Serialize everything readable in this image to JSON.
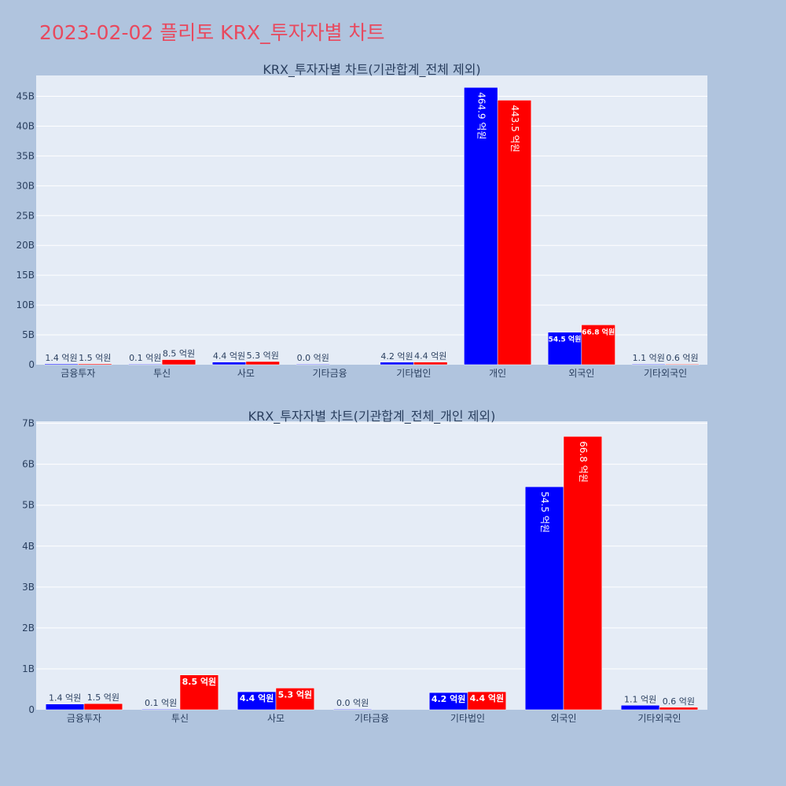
{
  "page_title": "2023-02-02 플리토 KRX_투자자별 차트",
  "colors": {
    "buy": "#0000ff",
    "sell": "#ff0000",
    "background": "#b0c4de",
    "plot_bg": "#e5ecf6",
    "title": "#e8495e"
  },
  "chart_data": [
    {
      "type": "bar",
      "title": "KRX_투자자별 차트(기관합계_전체 제외)",
      "xlabel": "",
      "ylabel": "",
      "ylim": [
        0,
        48.5
      ],
      "y_unit": "B",
      "yticks": [
        0,
        5,
        10,
        15,
        20,
        25,
        30,
        35,
        40,
        45
      ],
      "ytick_labels": [
        "0",
        "5B",
        "10B",
        "15B",
        "20B",
        "25B",
        "30B",
        "35B",
        "40B",
        "45B"
      ],
      "grid": true,
      "legend": "none",
      "categories": [
        "금융투자",
        "투신",
        "사모",
        "기타금융",
        "기타법인",
        "개인",
        "외국인",
        "기타외국인"
      ],
      "series": [
        {
          "color": "#0000ff",
          "values": [
            0.14,
            0.01,
            0.44,
            0.0,
            0.42,
            46.49,
            5.45,
            0.11
          ],
          "labels": [
            "1.4 억원",
            "0.1 억원",
            "4.4 억원",
            "0.0 억원",
            "4.2 억원",
            "464.9 억원",
            "54.5 억원",
            "1.1 억원"
          ]
        },
        {
          "color": "#ff0000",
          "values": [
            0.15,
            0.85,
            0.53,
            null,
            0.44,
            44.35,
            6.68,
            0.06
          ],
          "labels": [
            "1.5 억원",
            "8.5 억원",
            "5.3 억원",
            "",
            "4.4 억원",
            "443.5 억원",
            "66.8 억원",
            "0.6 억원"
          ]
        }
      ]
    },
    {
      "type": "bar",
      "title": "KRX_투자자별 차트(기관합계_전체_개인 제외)",
      "xlabel": "",
      "ylabel": "",
      "ylim": [
        0,
        7.05
      ],
      "y_unit": "B",
      "yticks": [
        0,
        1,
        2,
        3,
        4,
        5,
        6,
        7
      ],
      "ytick_labels": [
        "0",
        "1B",
        "2B",
        "3B",
        "4B",
        "5B",
        "6B",
        "7B"
      ],
      "grid": true,
      "legend": "none",
      "categories": [
        "금융투자",
        "투신",
        "사모",
        "기타금융",
        "기타법인",
        "외국인",
        "기타외국인"
      ],
      "series": [
        {
          "color": "#0000ff",
          "values": [
            0.14,
            0.01,
            0.44,
            0.0,
            0.42,
            5.45,
            0.11
          ],
          "labels": [
            "1.4 억원",
            "0.1 억원",
            "4.4 억원",
            "0.0 억원",
            "4.2 억원",
            "54.5 억원",
            "1.1 억원"
          ]
        },
        {
          "color": "#ff0000",
          "values": [
            0.15,
            0.85,
            0.53,
            null,
            0.44,
            6.68,
            0.06
          ],
          "labels": [
            "1.5 억원",
            "8.5 억원",
            "5.3 억원",
            "",
            "4.4 억원",
            "66.8 억원",
            "0.6 억원"
          ]
        }
      ]
    }
  ]
}
